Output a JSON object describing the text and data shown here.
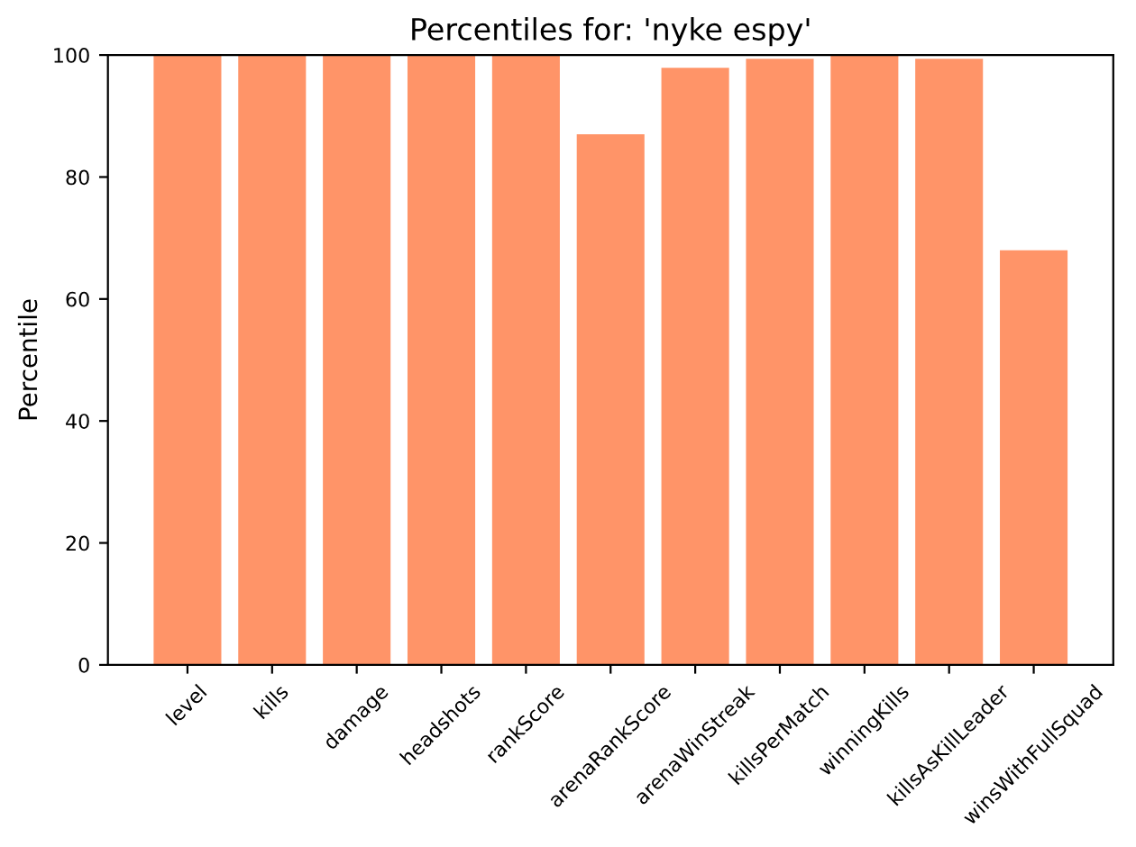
{
  "chart_data": {
    "type": "bar",
    "title": "Percentiles for: 'nyke espy'",
    "ylabel": "Percentile",
    "categories": [
      "level",
      "kills",
      "damage",
      "headshots",
      "rankScore",
      "arenaRankScore",
      "arenaWinStreak",
      "killsPerMatch",
      "winningKills",
      "killsAsKillLeader",
      "winsWithFullSquad"
    ],
    "values": [
      100,
      100,
      100,
      100,
      100,
      87,
      97.9,
      99.4,
      100,
      99.4,
      68
    ],
    "color": "#ff9468",
    "ylim": [
      0,
      100
    ],
    "yticks": [
      0,
      20,
      40,
      60,
      80,
      100
    ],
    "grid": false,
    "legend": false
  }
}
